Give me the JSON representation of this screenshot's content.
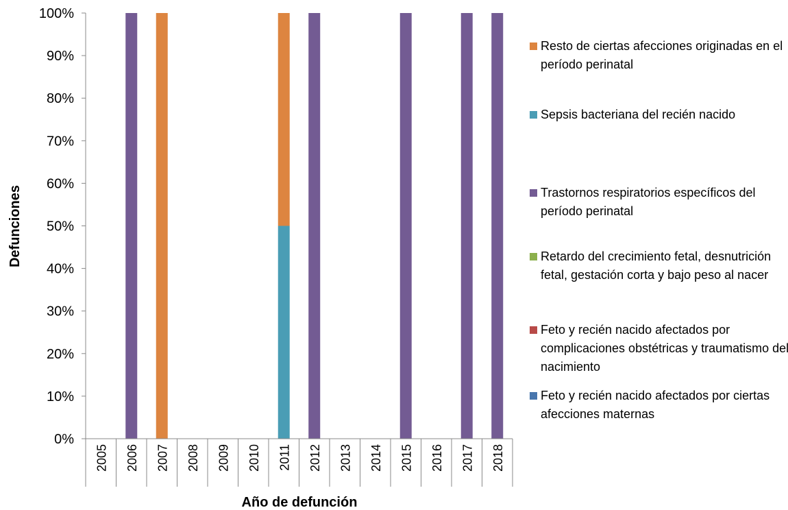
{
  "chart_data": {
    "type": "stacked_bar",
    "x_label": "Año de defunción",
    "y_label": "Defunciones",
    "categories": [
      "2005",
      "2006",
      "2007",
      "2008",
      "2009",
      "2010",
      "2011",
      "2012",
      "2013",
      "2014",
      "2015",
      "2016",
      "2017",
      "2018"
    ],
    "series": [
      {
        "name": "Feto y recién nacido afectados por ciertas afecciones maternas",
        "color": "#4876ad",
        "values": [
          0,
          0,
          0,
          0,
          0,
          0,
          0,
          0,
          0,
          0,
          0,
          0,
          0,
          0
        ]
      },
      {
        "name": "Feto y recién nacido afectados por complicaciones obstétricas y traumatismo del nacimiento",
        "color": "#b84a48",
        "values": [
          0,
          0,
          0,
          0,
          0,
          0,
          0,
          0,
          0,
          0,
          0,
          0,
          0,
          0
        ]
      },
      {
        "name": "Retardo del crecimiento fetal, desnutrición fetal, gestación corta y bajo peso al nacer",
        "color": "#8cb04d",
        "values": [
          0,
          0,
          0,
          0,
          0,
          0,
          0,
          0,
          0,
          0,
          0,
          0,
          0,
          0
        ]
      },
      {
        "name": "Trastornos respiratorios específicos del período perinatal",
        "color": "#735b93",
        "values": [
          0,
          100,
          0,
          0,
          0,
          0,
          0,
          100,
          0,
          0,
          100,
          0,
          100,
          100
        ]
      },
      {
        "name": "Sepsis bacteriana del recién nacido",
        "color": "#4a9db5",
        "values": [
          0,
          0,
          0,
          0,
          0,
          0,
          50,
          0,
          0,
          0,
          0,
          0,
          0,
          0
        ]
      },
      {
        "name": "Resto de ciertas afecciones originadas en el período perinatal",
        "color": "#dd8540",
        "values": [
          0,
          0,
          100,
          0,
          0,
          0,
          50,
          0,
          0,
          0,
          0,
          0,
          0,
          0
        ]
      }
    ],
    "ylim": [
      0,
      100
    ],
    "yticks": [
      {
        "value": 0,
        "label": "0%"
      },
      {
        "value": 10,
        "label": "10%"
      },
      {
        "value": 20,
        "label": "20%"
      },
      {
        "value": 30,
        "label": "30%"
      },
      {
        "value": 40,
        "label": "40%"
      },
      {
        "value": 50,
        "label": "50%"
      },
      {
        "value": 60,
        "label": "60%"
      },
      {
        "value": 70,
        "label": "70%"
      },
      {
        "value": 80,
        "label": "80%"
      },
      {
        "value": 90,
        "label": "90%"
      },
      {
        "value": 100,
        "label": "100%"
      }
    ],
    "legend_position": "right"
  }
}
